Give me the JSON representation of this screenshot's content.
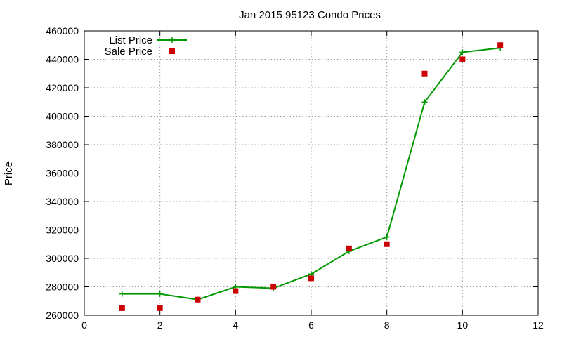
{
  "chart_data": {
    "type": "line",
    "title": "Jan 2015 95123 Condo Prices",
    "xlabel": "",
    "ylabel": "Price",
    "xlim": [
      0,
      12
    ],
    "ylim": [
      260000,
      460000
    ],
    "xticks": [
      0,
      2,
      4,
      6,
      8,
      10,
      12
    ],
    "yticks": [
      260000,
      280000,
      300000,
      320000,
      340000,
      360000,
      380000,
      400000,
      420000,
      440000,
      460000
    ],
    "grid": true,
    "legend_position": "top-left",
    "series": [
      {
        "name": "List Price",
        "style": "line+cross",
        "color": "#009900",
        "x": [
          1,
          2,
          3,
          4,
          5,
          6,
          7,
          8,
          9,
          10,
          11
        ],
        "y": [
          275000,
          275000,
          271000,
          280000,
          279000,
          289000,
          305000,
          315000,
          410000,
          445000,
          448000
        ]
      },
      {
        "name": "Sale Price",
        "style": "square-marker",
        "color": "#cc0000",
        "x": [
          1,
          2,
          3,
          4,
          5,
          6,
          7,
          8,
          9,
          10,
          11
        ],
        "y": [
          265000,
          265000,
          271000,
          277000,
          280000,
          286000,
          307000,
          310000,
          430000,
          440000,
          450000
        ]
      }
    ]
  }
}
